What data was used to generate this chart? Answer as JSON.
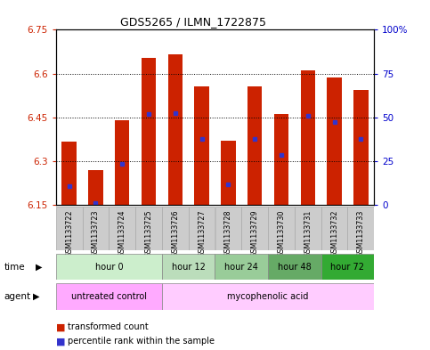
{
  "title": "GDS5265 / ILMN_1722875",
  "samples": [
    "GSM1133722",
    "GSM1133723",
    "GSM1133724",
    "GSM1133725",
    "GSM1133726",
    "GSM1133727",
    "GSM1133728",
    "GSM1133729",
    "GSM1133730",
    "GSM1133731",
    "GSM1133732",
    "GSM1133733"
  ],
  "bar_tops": [
    6.365,
    6.27,
    6.44,
    6.655,
    6.665,
    6.555,
    6.37,
    6.555,
    6.46,
    6.61,
    6.585,
    6.545
  ],
  "bar_bottom": 6.15,
  "blue_dot_values": [
    6.215,
    6.155,
    6.29,
    6.46,
    6.465,
    6.375,
    6.22,
    6.375,
    6.32,
    6.455,
    6.435,
    6.375
  ],
  "ylim_left": [
    6.15,
    6.75
  ],
  "ylim_right": [
    0,
    100
  ],
  "yticks_left": [
    6.15,
    6.3,
    6.45,
    6.6,
    6.75
  ],
  "yticks_right": [
    0,
    25,
    50,
    75,
    100
  ],
  "ytick_labels_left": [
    "6.15",
    "6.3",
    "6.45",
    "6.6",
    "6.75"
  ],
  "ytick_labels_right": [
    "0",
    "25",
    "50",
    "75",
    "100%"
  ],
  "bar_color": "#cc2200",
  "dot_color": "#3333cc",
  "time_group_colors": [
    "#cceecc",
    "#bbddbb",
    "#99cc99",
    "#66aa66",
    "#33aa33"
  ],
  "time_groups": [
    {
      "label": "hour 0",
      "start": 0,
      "end": 4
    },
    {
      "label": "hour 12",
      "start": 4,
      "end": 6
    },
    {
      "label": "hour 24",
      "start": 6,
      "end": 8
    },
    {
      "label": "hour 48",
      "start": 8,
      "end": 10
    },
    {
      "label": "hour 72",
      "start": 10,
      "end": 12
    }
  ],
  "agent_group_colors": [
    "#ffaaff",
    "#ffccff"
  ],
  "agent_groups": [
    {
      "label": "untreated control",
      "start": 0,
      "end": 4
    },
    {
      "label": "mycophenolic acid",
      "start": 4,
      "end": 12
    }
  ],
  "time_label": "time",
  "agent_label": "agent",
  "legend_items": [
    {
      "label": "transformed count",
      "color": "#cc2200"
    },
    {
      "label": "percentile rank within the sample",
      "color": "#3333cc"
    }
  ],
  "bar_width": 0.55,
  "background_color": "#ffffff",
  "sample_bg_color": "#cccccc",
  "border_color": "#000000"
}
